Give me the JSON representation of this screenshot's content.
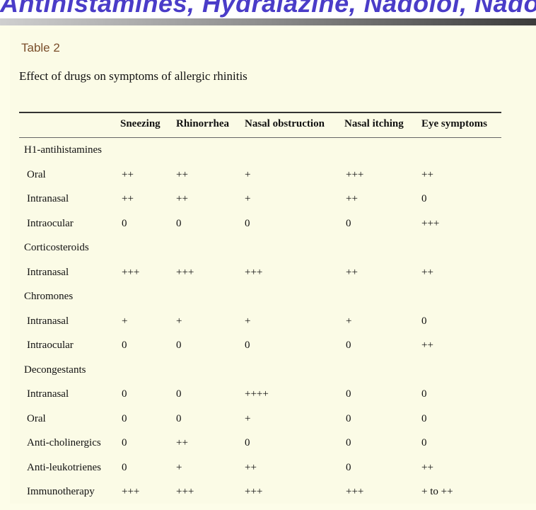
{
  "banner": {
    "text": "Antihistamines, Hydralazine, Nadolol, Nadolol"
  },
  "table": {
    "label": "Table 2",
    "caption": "Effect of drugs on symptoms of allergic rhinitis",
    "headers": [
      "",
      "Sneezing",
      "Rhinorrhea",
      "Nasal obstruction",
      "Nasal itching",
      "Eye symptoms"
    ],
    "rows": [
      {
        "type": "group",
        "label": "H1-antihistamines"
      },
      {
        "type": "data",
        "label": "Oral",
        "values": [
          "++",
          "++",
          "+",
          "+++",
          "++"
        ]
      },
      {
        "type": "data",
        "label": "Intranasal",
        "values": [
          "++",
          "++",
          "+",
          "++",
          "0"
        ]
      },
      {
        "type": "data",
        "label": "Intraocular",
        "values": [
          "0",
          "0",
          "0",
          "0",
          "+++"
        ]
      },
      {
        "type": "group",
        "label": "Corticosteroids"
      },
      {
        "type": "data",
        "label": "Intranasal",
        "values": [
          "+++",
          "+++",
          "+++",
          "++",
          "++"
        ]
      },
      {
        "type": "group",
        "label": "Chromones"
      },
      {
        "type": "data",
        "label": "Intranasal",
        "values": [
          "+",
          "+",
          "+",
          "+",
          "0"
        ]
      },
      {
        "type": "data",
        "label": "Intraocular",
        "values": [
          "0",
          "0",
          "0",
          "0",
          "++"
        ]
      },
      {
        "type": "group",
        "label": "Decongestants"
      },
      {
        "type": "data",
        "label": "Intranasal",
        "values": [
          "0",
          "0",
          "++++",
          "0",
          "0"
        ]
      },
      {
        "type": "data",
        "label": "Oral",
        "values": [
          "0",
          "0",
          "+",
          "0",
          "0"
        ]
      },
      {
        "type": "data",
        "label": "Anti-cholinergics",
        "values": [
          "0",
          "++",
          "0",
          "0",
          "0"
        ]
      },
      {
        "type": "data",
        "label": "Anti-leukotrienes",
        "values": [
          "0",
          "+",
          "++",
          "0",
          "++"
        ]
      },
      {
        "type": "data",
        "label": "Immunotherapy",
        "values": [
          "+++",
          "+++",
          "+++",
          "+++",
          "+ to ++"
        ]
      }
    ]
  }
}
